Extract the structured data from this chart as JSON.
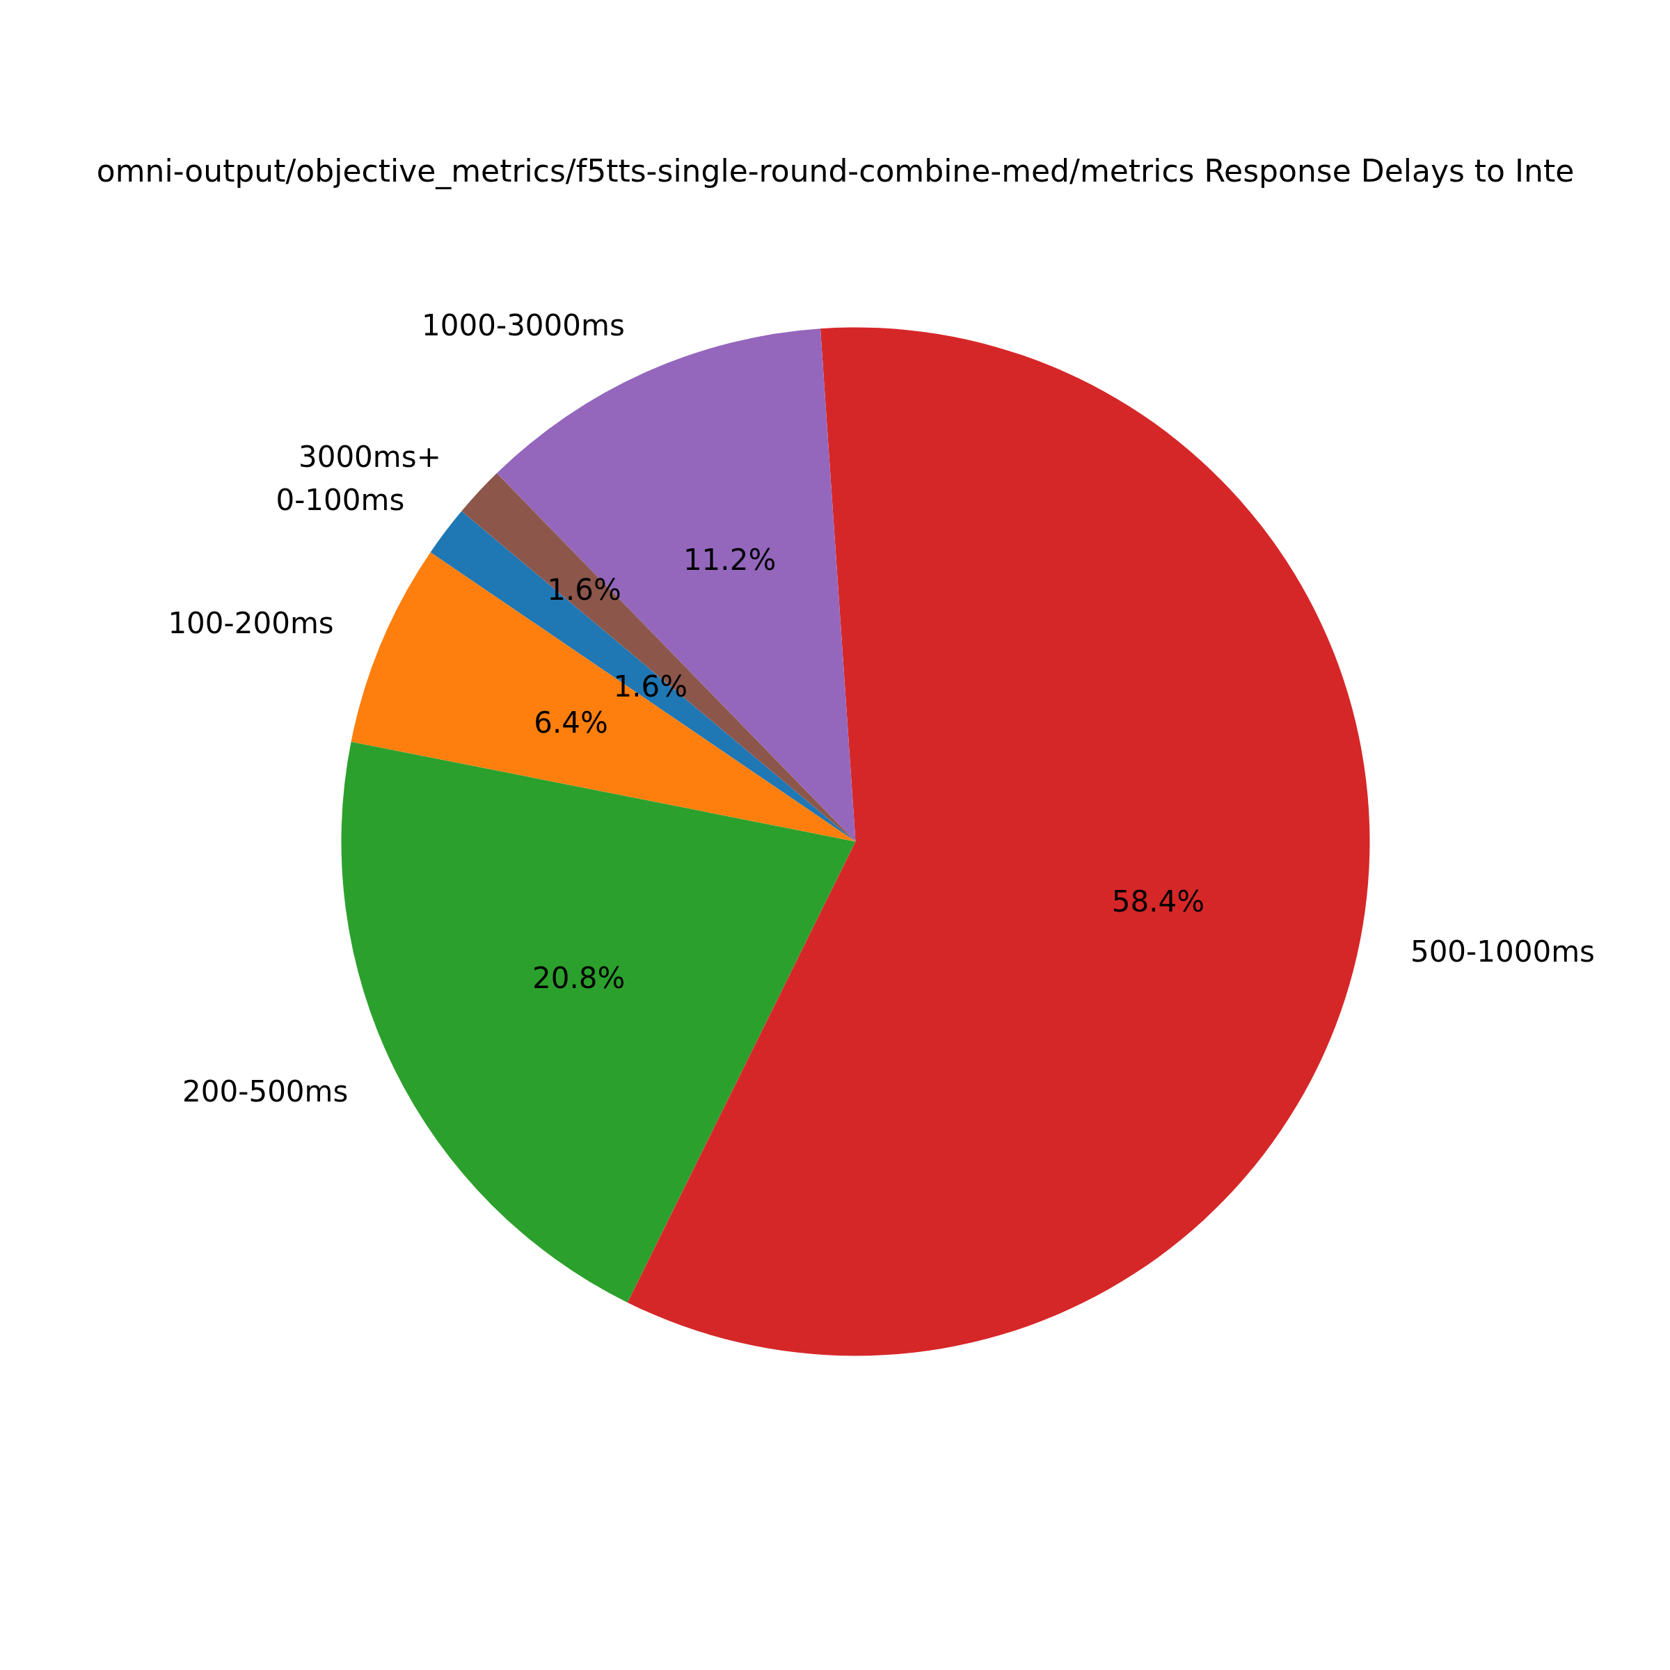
{
  "chart_data": {
    "type": "pie",
    "title": "omni-output/objective_metrics/f5tts-single-round-combine-med/metrics Response Delays to Inte",
    "categories": [
      "0-100ms",
      "100-200ms",
      "200-500ms",
      "500-1000ms",
      "1000-3000ms",
      "3000ms+"
    ],
    "values": [
      1.6,
      6.4,
      20.8,
      58.4,
      11.2,
      1.6
    ],
    "colors": [
      "#1f77b4",
      "#ff7f0e",
      "#2ca02c",
      "#d62728",
      "#9467bd",
      "#8c564b"
    ],
    "value_labels": [
      "1.6%",
      "6.4%",
      "20.8%",
      "58.4%",
      "11.2%",
      "1.6%"
    ]
  }
}
